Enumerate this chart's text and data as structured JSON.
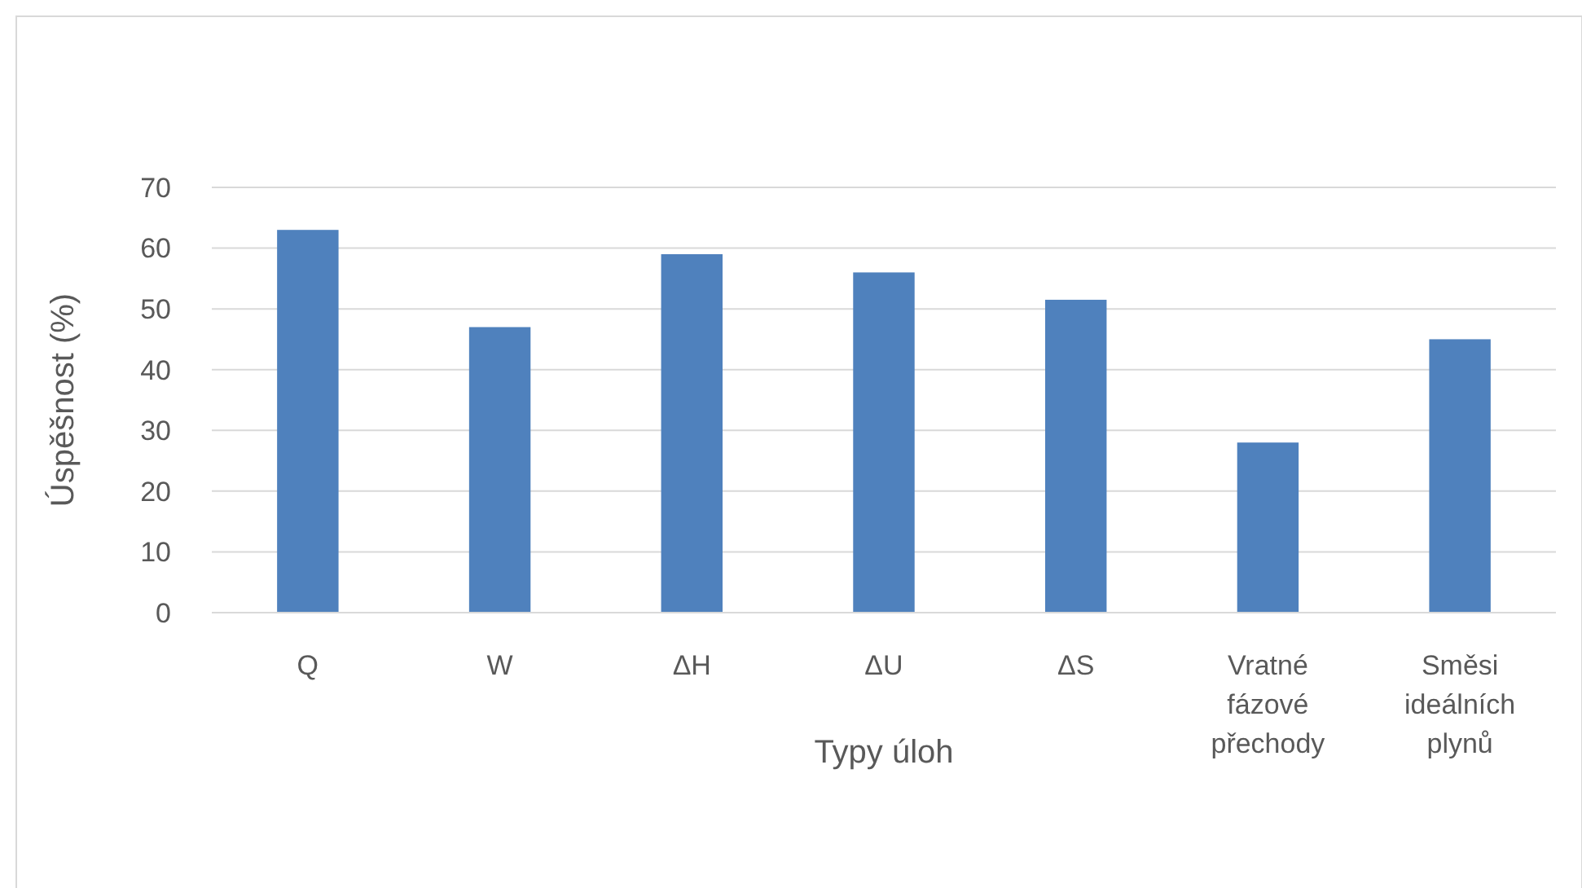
{
  "chart_data": {
    "type": "bar",
    "xlabel": "Typy úloh",
    "ylabel": "Úspěšnost (%)",
    "categories": [
      "Q",
      "W",
      "ΔH",
      "ΔU",
      "ΔS",
      "Vratné fázové přechody",
      "Směsi ideálních plynů"
    ],
    "values": [
      63,
      47,
      59,
      56,
      51.5,
      28,
      45
    ],
    "color": "#4f81bd",
    "ylim": [
      0,
      70
    ],
    "yticks": [
      0,
      10,
      20,
      30,
      40,
      50,
      60,
      70
    ],
    "grid": "y"
  }
}
